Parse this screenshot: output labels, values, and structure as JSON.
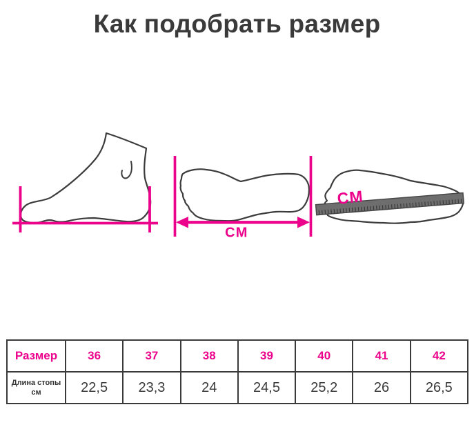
{
  "title": "Как подобрать размер",
  "colors": {
    "accent_pink": "#ec038c",
    "outline_gray": "#3c3c3c",
    "ruler_gray": "#6e6e6e"
  },
  "illustrations": {
    "foot_side": {
      "name": "foot-side-with-measure-lines"
    },
    "footprint_length": {
      "cm_label": "СМ"
    },
    "footprint_ruler": {
      "cm_label": "СМ"
    }
  },
  "table": {
    "size_label": "Размер",
    "sizes": [
      "36",
      "37",
      "38",
      "39",
      "40",
      "41",
      "42"
    ],
    "length_label": "Длина стопы см",
    "lengths": [
      "22,5",
      "23,3",
      "24",
      "24,5",
      "25,2",
      "26",
      "26,5"
    ]
  }
}
